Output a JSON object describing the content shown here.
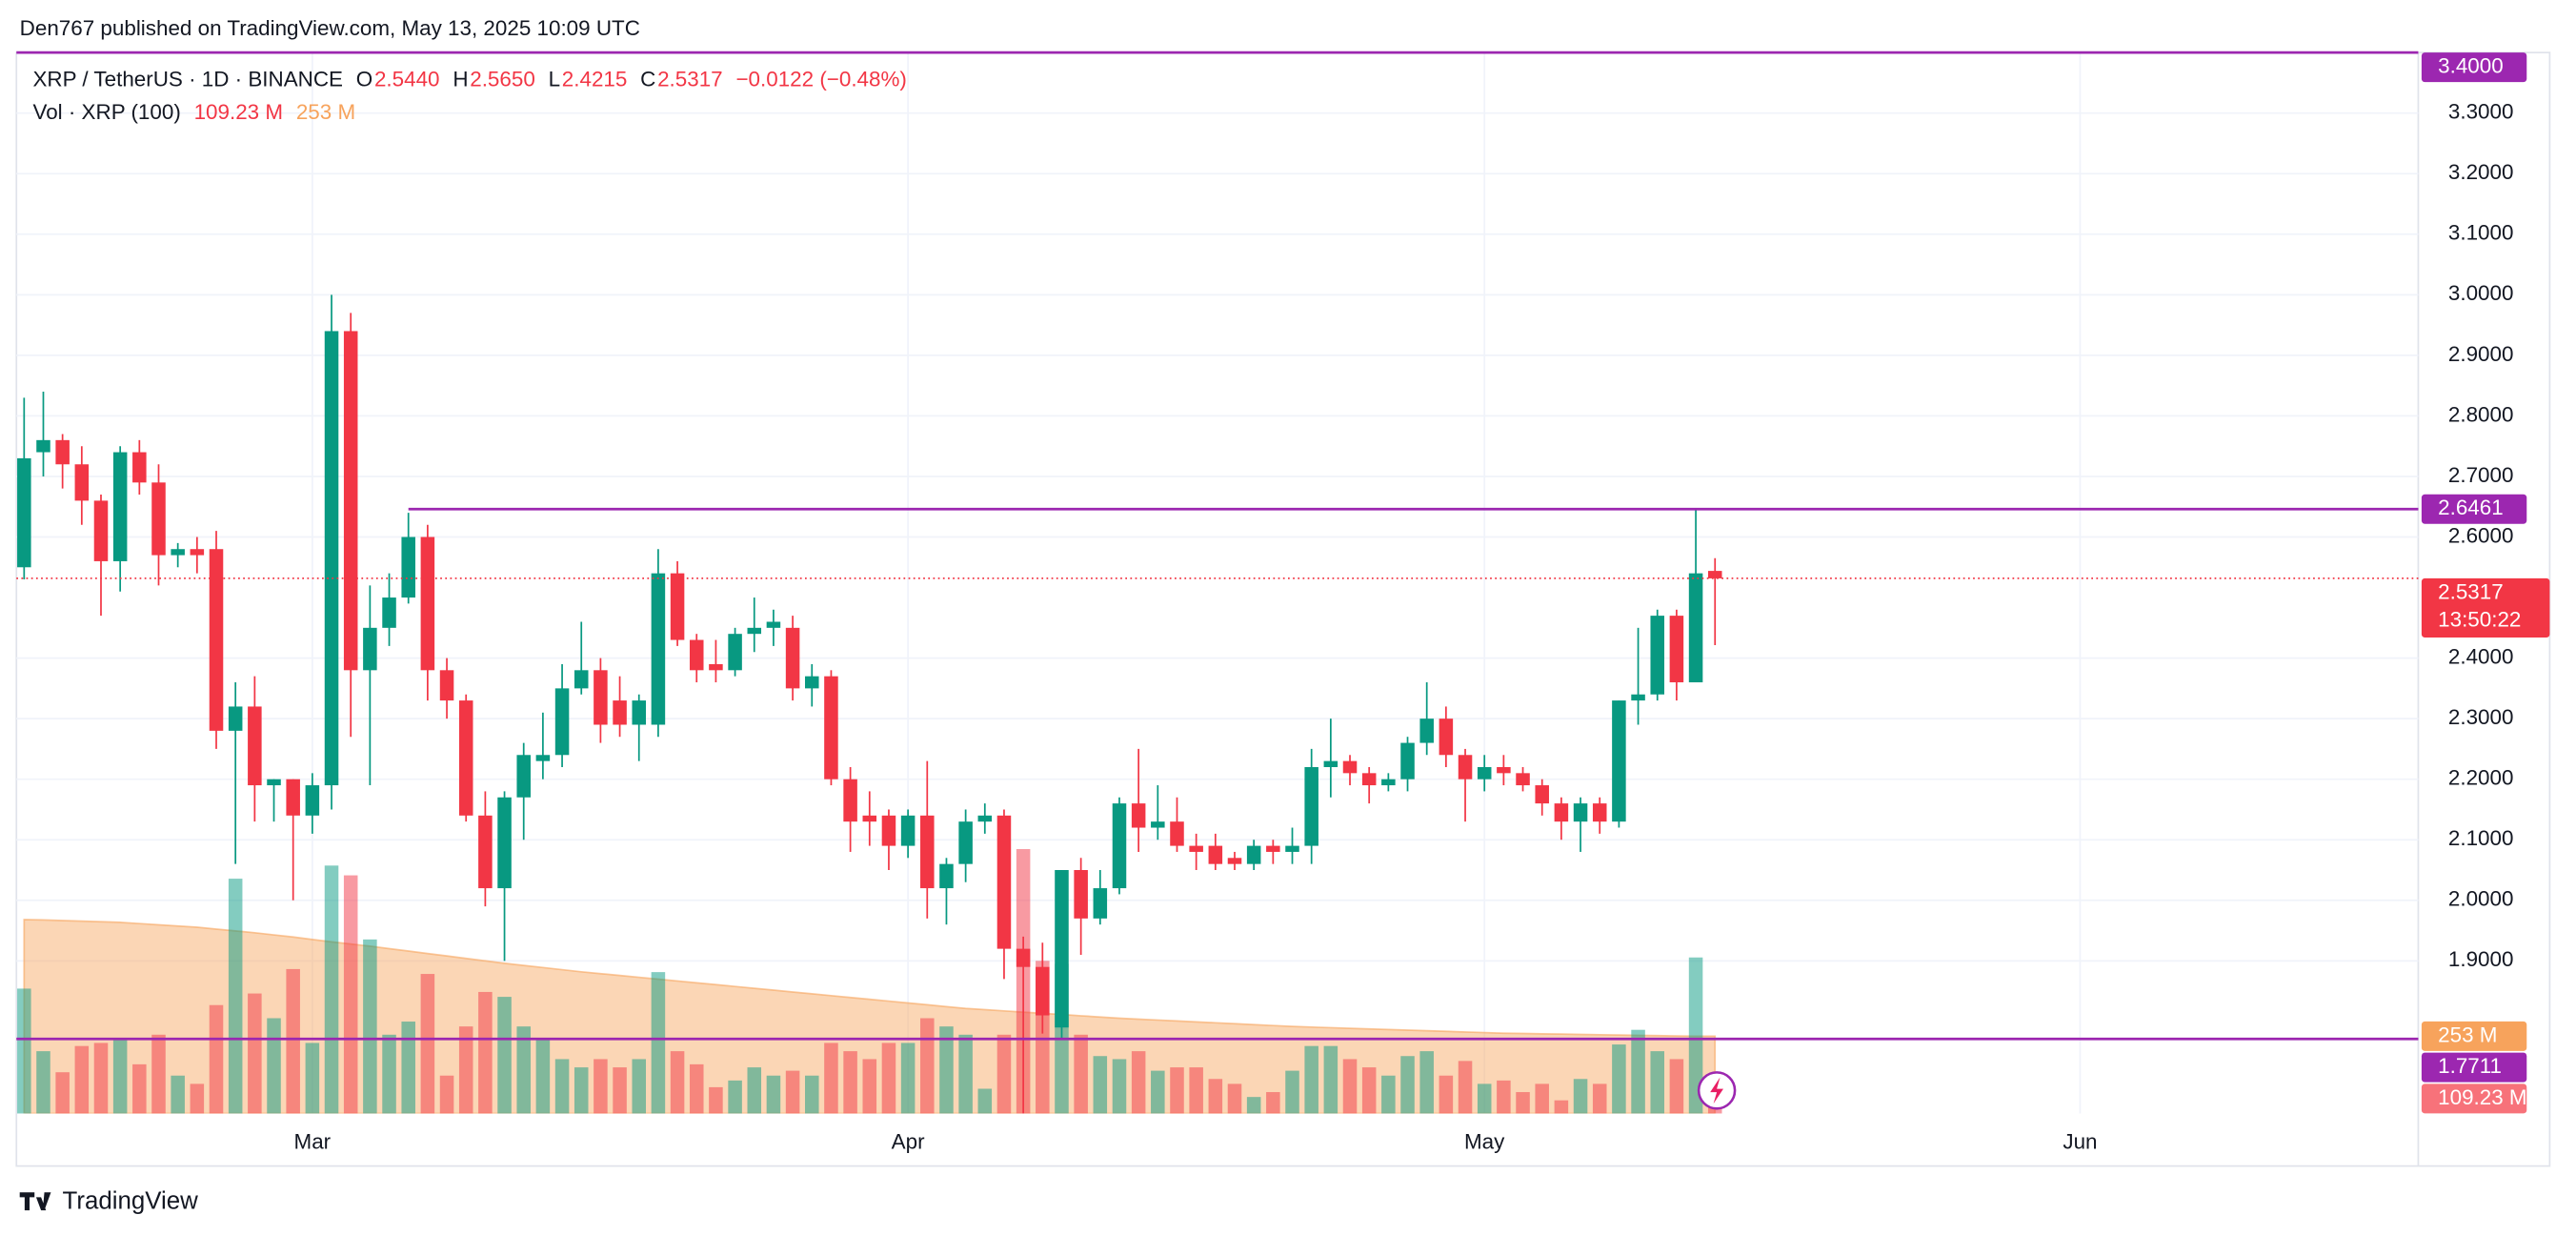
{
  "header": "Den767 published on TradingView.com, May 13, 2025 10:09 UTC",
  "footer": "TradingView",
  "chart_data": {
    "type": "candlestick",
    "title": "XRP / TetherUS · 1D · BINANCE",
    "legend_ohlc": [
      {
        "label": "O",
        "value": "2.5440"
      },
      {
        "label": "H",
        "value": "2.5650"
      },
      {
        "label": "L",
        "value": "2.4215"
      },
      {
        "label": "C",
        "value": "2.5317"
      }
    ],
    "change": "−0.0122 (−0.48%)",
    "up_color": "#089981",
    "down_color": "#f23645",
    "x": [
      0,
      1,
      2,
      3,
      4,
      5,
      6,
      7,
      8,
      9,
      10,
      11,
      12,
      13,
      14,
      15,
      16,
      17,
      18,
      19,
      20,
      21,
      22,
      23,
      24,
      25,
      26,
      27,
      28,
      29,
      30,
      31,
      32,
      33,
      34,
      35,
      36,
      37,
      38,
      39,
      40,
      41,
      42,
      43,
      44,
      45,
      46,
      47,
      48,
      49,
      50,
      51,
      52,
      53,
      54,
      55,
      56,
      57,
      58,
      59,
      60,
      61,
      62,
      63,
      64,
      65,
      66,
      67,
      68,
      69,
      70,
      71,
      72,
      73,
      74,
      75,
      76,
      77,
      78,
      79,
      80,
      81,
      82,
      83,
      84,
      85,
      86,
      87,
      88
    ],
    "open": [
      2.55,
      2.74,
      2.76,
      2.72,
      2.66,
      2.56,
      2.74,
      2.69,
      2.57,
      2.58,
      2.58,
      2.28,
      2.32,
      2.19,
      2.2,
      2.14,
      2.19,
      2.94,
      2.38,
      2.45,
      2.5,
      2.6,
      2.38,
      2.33,
      2.14,
      2.02,
      2.17,
      2.23,
      2.24,
      2.35,
      2.38,
      2.33,
      2.29,
      2.29,
      2.54,
      2.43,
      2.39,
      2.38,
      2.44,
      2.45,
      2.45,
      2.35,
      2.37,
      2.2,
      2.14,
      2.14,
      2.09,
      2.14,
      2.02,
      2.06,
      2.13,
      2.14,
      1.92,
      1.89,
      1.79,
      2.05,
      1.97,
      2.02,
      2.16,
      2.12,
      2.13,
      2.09,
      2.09,
      2.07,
      2.06,
      2.09,
      2.08,
      2.09,
      2.22,
      2.23,
      2.21,
      2.19,
      2.2,
      2.26,
      2.3,
      2.24,
      2.2,
      2.22,
      2.21,
      2.19,
      2.16,
      2.13,
      2.16,
      2.13,
      2.33,
      2.34,
      2.47,
      2.36,
      2.544
    ],
    "high": [
      2.83,
      2.84,
      2.77,
      2.75,
      2.67,
      2.75,
      2.76,
      2.72,
      2.59,
      2.6,
      2.61,
      2.36,
      2.37,
      2.2,
      2.2,
      2.21,
      3.0,
      2.97,
      2.52,
      2.54,
      2.64,
      2.62,
      2.4,
      2.34,
      2.18,
      2.18,
      2.26,
      2.31,
      2.39,
      2.46,
      2.4,
      2.37,
      2.34,
      2.58,
      2.56,
      2.44,
      2.43,
      2.45,
      2.5,
      2.48,
      2.47,
      2.39,
      2.38,
      2.22,
      2.18,
      2.15,
      2.15,
      2.23,
      2.07,
      2.15,
      2.16,
      2.15,
      1.94,
      1.93,
      2.05,
      2.07,
      2.05,
      2.17,
      2.25,
      2.19,
      2.17,
      2.11,
      2.11,
      2.08,
      2.1,
      2.1,
      2.12,
      2.25,
      2.3,
      2.24,
      2.22,
      2.21,
      2.27,
      2.36,
      2.32,
      2.25,
      2.24,
      2.24,
      2.22,
      2.2,
      2.17,
      2.17,
      2.17,
      2.33,
      2.45,
      2.48,
      2.48,
      2.646,
      2.565
    ],
    "low": [
      2.53,
      2.7,
      2.68,
      2.62,
      2.47,
      2.51,
      2.67,
      2.52,
      2.55,
      2.54,
      2.25,
      2.06,
      2.13,
      2.13,
      2.0,
      2.11,
      2.15,
      2.27,
      2.19,
      2.42,
      2.49,
      2.33,
      2.3,
      2.13,
      1.99,
      1.9,
      2.1,
      2.2,
      2.22,
      2.34,
      2.26,
      2.27,
      2.23,
      2.27,
      2.42,
      2.36,
      2.36,
      2.37,
      2.41,
      2.42,
      2.33,
      2.32,
      2.19,
      2.08,
      2.09,
      2.05,
      2.07,
      1.97,
      1.96,
      2.03,
      2.11,
      1.87,
      1.61,
      1.78,
      1.77,
      1.91,
      1.96,
      2.01,
      2.08,
      2.1,
      2.08,
      2.05,
      2.05,
      2.05,
      2.05,
      2.06,
      2.06,
      2.06,
      2.17,
      2.19,
      2.16,
      2.18,
      2.18,
      2.24,
      2.22,
      2.13,
      2.18,
      2.19,
      2.18,
      2.14,
      2.1,
      2.08,
      2.11,
      2.12,
      2.29,
      2.33,
      2.33,
      2.36,
      2.4215
    ],
    "close": [
      2.73,
      2.76,
      2.72,
      2.66,
      2.56,
      2.74,
      2.69,
      2.57,
      2.58,
      2.57,
      2.28,
      2.32,
      2.19,
      2.2,
      2.14,
      2.19,
      2.94,
      2.38,
      2.45,
      2.5,
      2.6,
      2.38,
      2.33,
      2.14,
      2.02,
      2.17,
      2.24,
      2.24,
      2.35,
      2.38,
      2.29,
      2.29,
      2.33,
      2.54,
      2.43,
      2.38,
      2.38,
      2.44,
      2.45,
      2.46,
      2.35,
      2.37,
      2.2,
      2.13,
      2.13,
      2.09,
      2.14,
      2.02,
      2.06,
      2.13,
      2.14,
      1.92,
      1.89,
      1.81,
      2.05,
      1.97,
      2.02,
      2.16,
      2.12,
      2.13,
      2.09,
      2.08,
      2.06,
      2.06,
      2.09,
      2.08,
      2.09,
      2.22,
      2.23,
      2.21,
      2.19,
      2.2,
      2.26,
      2.3,
      2.24,
      2.2,
      2.22,
      2.21,
      2.19,
      2.16,
      2.13,
      2.16,
      2.13,
      2.33,
      2.34,
      2.47,
      2.36,
      2.54,
      2.5317
    ],
    "xlim": [
      -0.4,
      124.6
    ],
    "xticks": [
      {
        "value": 15,
        "label": "Mar"
      },
      {
        "value": 46,
        "label": "Apr"
      },
      {
        "value": 76,
        "label": "May"
      },
      {
        "value": 107,
        "label": "Jun"
      }
    ],
    "ylim": [
      1.648,
      3.4
    ],
    "yticks": [
      {
        "value": 1.9,
        "label": "1.9000"
      },
      {
        "value": 2.0,
        "label": "2.0000"
      },
      {
        "value": 2.1,
        "label": "2.1000"
      },
      {
        "value": 2.2,
        "label": "2.2000"
      },
      {
        "value": 2.3,
        "label": "2.3000"
      },
      {
        "value": 2.4,
        "label": "2.4000"
      },
      {
        "value": 2.6,
        "label": "2.6000"
      },
      {
        "value": 2.7,
        "label": "2.7000"
      },
      {
        "value": 2.8,
        "label": "2.8000"
      },
      {
        "value": 2.9,
        "label": "2.9000"
      },
      {
        "value": 3.0,
        "label": "3.0000"
      },
      {
        "value": 3.1,
        "label": "3.1000"
      },
      {
        "value": 3.2,
        "label": "3.2000"
      },
      {
        "value": 3.3,
        "label": "3.3000"
      }
    ],
    "grid": true,
    "levels": [
      {
        "value": 3.4,
        "label": "3.4000",
        "color": "#9c27b0"
      },
      {
        "value": 2.6461,
        "label": "2.6461",
        "color": "#9c27b0",
        "x_start": 20
      },
      {
        "value": 1.7711,
        "label": "1.7711",
        "color": "#9c27b0"
      }
    ],
    "current": {
      "value": 2.5317,
      "label": "2.5317",
      "countdown": "13:50:22"
    },
    "volume": {
      "name": "Vol · XRP (100)",
      "vlim": [
        0,
        3475
      ],
      "current_label": "109.23 M",
      "label_color": "#f7727a",
      "values": [
        409,
        204,
        135,
        221,
        231,
        242,
        161,
        258,
        124,
        97,
        355,
        769,
        393,
        312,
        473,
        231,
        812,
        780,
        570,
        258,
        301,
        457,
        124,
        285,
        398,
        382,
        285,
        247,
        178,
        151,
        178,
        151,
        178,
        463,
        204,
        161,
        86,
        108,
        151,
        124,
        140,
        124,
        231,
        204,
        178,
        231,
        231,
        312,
        285,
        258,
        81,
        258,
        866,
        500,
        490,
        258,
        188,
        178,
        204,
        140,
        151,
        151,
        113,
        97,
        54,
        70,
        140,
        221,
        221,
        178,
        151,
        124,
        188,
        204,
        124,
        172,
        97,
        108,
        70,
        97,
        43,
        113,
        97,
        226,
        274,
        204,
        178,
        511,
        109.23
      ],
      "ma": {
        "color": "#f7a35c",
        "label": "253 M",
        "values": [
          635,
          634,
          632,
          630,
          628,
          626,
          622,
          618,
          614,
          610,
          604,
          598,
          592,
          585,
          578,
          570,
          562,
          555,
          548,
          540,
          532,
          524,
          516,
          508,
          500,
          492,
          485,
          478,
          471,
          464,
          458,
          452,
          446,
          440,
          434,
          428,
          422,
          416,
          410,
          404,
          398,
          392,
          386,
          380,
          374,
          368,
          362,
          356,
          350,
          344,
          340,
          336,
          332,
          328,
          324,
          320,
          316,
          312,
          309,
          306,
          303,
          300,
          297,
          294,
          291,
          288,
          285,
          283,
          281,
          279,
          277,
          275,
          273,
          271,
          269,
          267,
          265,
          263,
          262,
          261,
          260,
          259,
          258,
          257,
          256,
          255,
          254,
          253,
          253
        ]
      }
    }
  }
}
